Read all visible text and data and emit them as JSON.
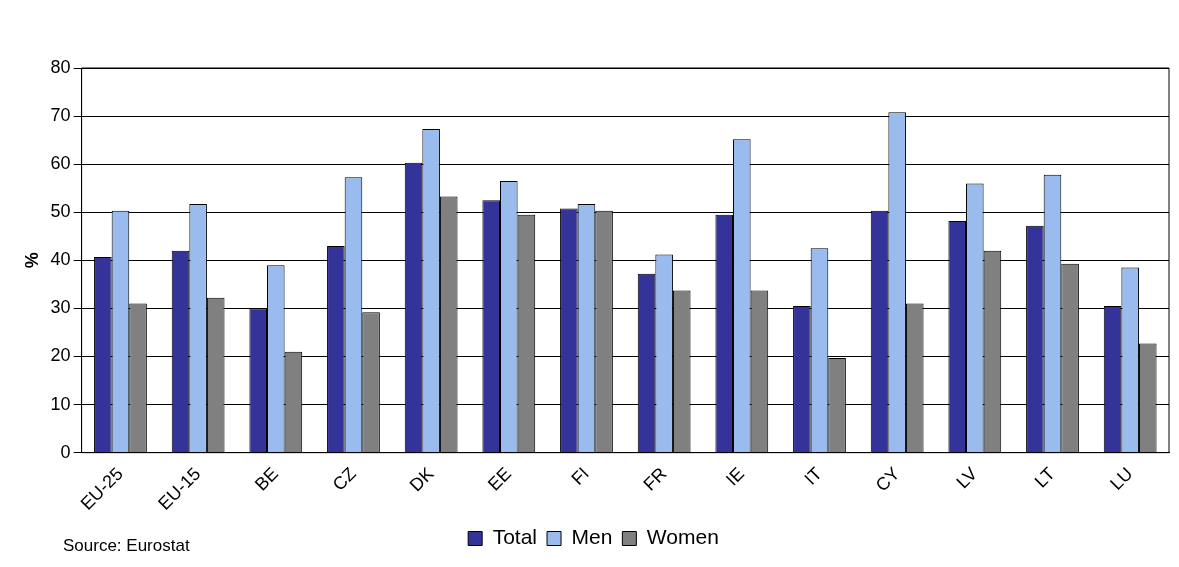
{
  "chart_data": {
    "type": "bar",
    "ylabel": "%",
    "categories": [
      "EU-25",
      "EU-15",
      "BE",
      "CZ",
      "DK",
      "EE",
      "FI",
      "FR",
      "IE",
      "IT",
      "CY",
      "LV",
      "LT",
      "LU"
    ],
    "series": [
      {
        "name": "Total",
        "color": "#333399",
        "values": [
          40.7,
          42,
          30,
          43,
          60.3,
          52.5,
          50.8,
          37.2,
          49.5,
          30.5,
          50.3,
          48.2,
          47.2,
          30.5
        ]
      },
      {
        "name": "Men",
        "color": "#99bbee",
        "values": [
          50.3,
          51.7,
          39,
          57.3,
          67.3,
          56.5,
          51.7,
          41.2,
          65.2,
          42.5,
          70.8,
          56,
          57.8,
          38.5
        ]
      },
      {
        "name": "Women",
        "color": "#808080",
        "values": [
          31,
          32.2,
          21,
          29.2,
          53.3,
          49.5,
          50.3,
          33.7,
          33.7,
          19.7,
          31,
          42,
          39.3,
          22.7
        ]
      }
    ],
    "ylim": [
      0,
      80
    ],
    "yticks": [
      0,
      10,
      20,
      30,
      40,
      50,
      60,
      70,
      80
    ],
    "grid": "y",
    "legend": "bottom",
    "annotations": [
      "Source: Eurostat"
    ]
  }
}
